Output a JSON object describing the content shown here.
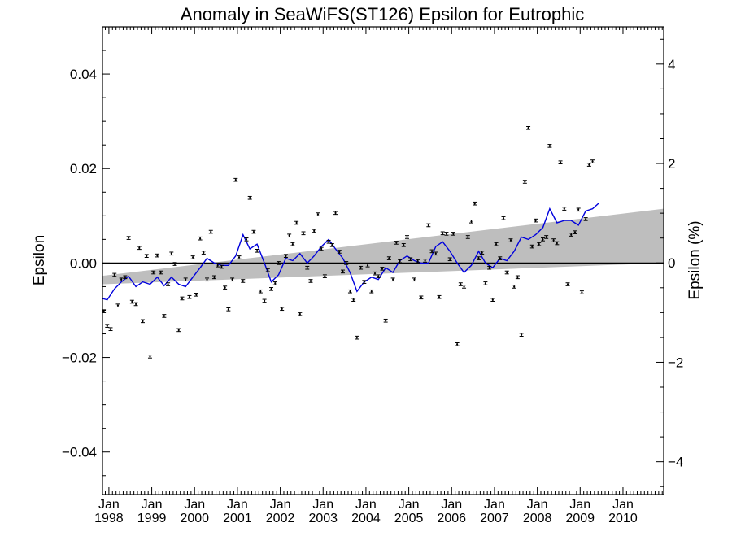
{
  "chart_data": {
    "type": "scatter",
    "title": "Anomaly in SeaWiFS(ST126) Epsilon for Eutrophic",
    "ylabel": "Epsilon",
    "y2label": "Epsilon (%)",
    "xlim": [
      1997.85,
      2010.95
    ],
    "ylim": [
      -0.049,
      0.05
    ],
    "y2lim": [
      -4.66,
      4.75
    ],
    "y_ticks": [
      {
        "value": 0.04,
        "label": "0.04"
      },
      {
        "value": 0.02,
        "label": "0.02"
      },
      {
        "value": 0.0,
        "label": "0.00"
      },
      {
        "value": -0.02,
        "label": "−0.02"
      },
      {
        "value": -0.04,
        "label": "−0.04"
      }
    ],
    "y2_ticks": [
      {
        "value": 4,
        "label": "4"
      },
      {
        "value": 2,
        "label": "2"
      },
      {
        "value": 0,
        "label": "0"
      },
      {
        "value": -2,
        "label": "−2"
      },
      {
        "value": -4,
        "label": "−4"
      }
    ],
    "x_ticks": [
      {
        "value": 1998.0,
        "month": "Jan",
        "year": "1998"
      },
      {
        "value": 1999.0,
        "month": "Jan",
        "year": "1999"
      },
      {
        "value": 2000.0,
        "month": "Jan",
        "year": "2000"
      },
      {
        "value": 2001.0,
        "month": "Jan",
        "year": "2001"
      },
      {
        "value": 2002.0,
        "month": "Jan",
        "year": "2002"
      },
      {
        "value": 2003.0,
        "month": "Jan",
        "year": "2003"
      },
      {
        "value": 2004.0,
        "month": "Jan",
        "year": "2004"
      },
      {
        "value": 2005.0,
        "month": "Jan",
        "year": "2005"
      },
      {
        "value": 2006.0,
        "month": "Jan",
        "year": "2006"
      },
      {
        "value": 2007.0,
        "month": "Jan",
        "year": "2007"
      },
      {
        "value": 2008.0,
        "month": "Jan",
        "year": "2008"
      },
      {
        "value": 2009.0,
        "month": "Jan",
        "year": "2009"
      },
      {
        "value": 2010.0,
        "month": "Jan",
        "year": "2010"
      }
    ],
    "trend_band": {
      "x": [
        1997.85,
        2010.95
      ],
      "upper": [
        -0.0027,
        0.0115
      ],
      "lower": [
        -0.0045,
        0.0
      ],
      "color": "#bebebe"
    },
    "zero_line": 0.0,
    "points": [
      [
        1997.88,
        -0.0102
      ],
      [
        1997.96,
        -0.0133
      ],
      [
        1998.04,
        -0.014
      ],
      [
        1998.13,
        -0.0025
      ],
      [
        1998.21,
        -0.009
      ],
      [
        1998.29,
        -0.0035
      ],
      [
        1998.38,
        -0.003
      ],
      [
        1998.46,
        0.0053
      ],
      [
        1998.54,
        -0.0082
      ],
      [
        1998.63,
        -0.0087
      ],
      [
        1998.71,
        0.0032
      ],
      [
        1998.79,
        -0.0123
      ],
      [
        1998.88,
        0.0015
      ],
      [
        1998.96,
        -0.0198
      ],
      [
        1999.04,
        -0.002
      ],
      [
        1999.13,
        0.0016
      ],
      [
        1999.21,
        -0.002
      ],
      [
        1999.29,
        -0.0112
      ],
      [
        1999.38,
        -0.0045
      ],
      [
        1999.46,
        0.002
      ],
      [
        1999.54,
        -0.0002
      ],
      [
        1999.63,
        -0.0142
      ],
      [
        1999.71,
        -0.0075
      ],
      [
        1999.79,
        -0.0035
      ],
      [
        1999.88,
        -0.0072
      ],
      [
        1999.96,
        0.0012
      ],
      [
        2000.04,
        -0.0067
      ],
      [
        2000.13,
        0.0052
      ],
      [
        2000.21,
        0.0022
      ],
      [
        2000.29,
        -0.0035
      ],
      [
        2000.38,
        0.0066
      ],
      [
        2000.46,
        -0.003
      ],
      [
        2000.54,
        -0.0005
      ],
      [
        2000.63,
        -0.0008
      ],
      [
        2000.71,
        -0.0052
      ],
      [
        2000.79,
        -0.0098
      ],
      [
        2000.88,
        -0.0035
      ],
      [
        2000.96,
        0.0176
      ],
      [
        2001.04,
        0.0012
      ],
      [
        2001.13,
        -0.0038
      ],
      [
        2001.21,
        0.005
      ],
      [
        2001.29,
        0.0138
      ],
      [
        2001.38,
        0.0066
      ],
      [
        2001.46,
        0.0026
      ],
      [
        2001.54,
        -0.006
      ],
      [
        2001.63,
        -0.008
      ],
      [
        2001.71,
        -0.0015
      ],
      [
        2001.79,
        -0.0055
      ],
      [
        2001.88,
        -0.0043
      ],
      [
        2001.96,
        0.0
      ],
      [
        2002.04,
        -0.0097
      ],
      [
        2002.13,
        0.0015
      ],
      [
        2002.21,
        0.0058
      ],
      [
        2002.29,
        0.004
      ],
      [
        2002.38,
        0.0085
      ],
      [
        2002.46,
        -0.0108
      ],
      [
        2002.54,
        0.0063
      ],
      [
        2002.63,
        -0.001
      ],
      [
        2002.71,
        -0.0038
      ],
      [
        2002.79,
        0.0068
      ],
      [
        2002.88,
        0.0103
      ],
      [
        2002.96,
        0.003
      ],
      [
        2003.04,
        -0.0028
      ],
      [
        2003.13,
        0.0045
      ],
      [
        2003.21,
        0.0038
      ],
      [
        2003.29,
        0.0106
      ],
      [
        2003.38,
        0.0024
      ],
      [
        2003.46,
        -0.0018
      ],
      [
        2003.54,
        0.0
      ],
      [
        2003.63,
        -0.006
      ],
      [
        2003.71,
        -0.0078
      ],
      [
        2003.79,
        -0.0158
      ],
      [
        2003.88,
        -0.001
      ],
      [
        2003.96,
        -0.004
      ],
      [
        2004.04,
        -0.0005
      ],
      [
        2004.13,
        -0.006
      ],
      [
        2004.21,
        -0.0022
      ],
      [
        2004.29,
        -0.0028
      ],
      [
        2004.38,
        -0.0012
      ],
      [
        2004.46,
        -0.0122
      ],
      [
        2004.54,
        0.001
      ],
      [
        2004.63,
        -0.0035
      ],
      [
        2004.71,
        0.0043
      ],
      [
        2004.79,
        0.0004
      ],
      [
        2004.88,
        0.0038
      ],
      [
        2004.96,
        0.0055
      ],
      [
        2005.04,
        0.0008
      ],
      [
        2005.13,
        -0.0035
      ],
      [
        2005.21,
        0.0004
      ],
      [
        2005.29,
        -0.0073
      ],
      [
        2005.38,
        0.0005
      ],
      [
        2005.46,
        0.008
      ],
      [
        2005.54,
        0.0025
      ],
      [
        2005.63,
        0.002
      ],
      [
        2005.71,
        -0.0072
      ],
      [
        2005.79,
        0.0063
      ],
      [
        2005.88,
        0.0062
      ],
      [
        2005.96,
        0.0008
      ],
      [
        2006.04,
        0.0062
      ],
      [
        2006.13,
        -0.0172
      ],
      [
        2006.21,
        -0.0045
      ],
      [
        2006.29,
        -0.005
      ],
      [
        2006.38,
        0.0055
      ],
      [
        2006.46,
        0.0088
      ],
      [
        2006.54,
        0.0126
      ],
      [
        2006.63,
        0.001
      ],
      [
        2006.71,
        0.0022
      ],
      [
        2006.79,
        -0.0043
      ],
      [
        2006.88,
        -0.001
      ],
      [
        2006.96,
        -0.0078
      ],
      [
        2007.04,
        0.004
      ],
      [
        2007.13,
        0.001
      ],
      [
        2007.21,
        0.0095
      ],
      [
        2007.29,
        -0.002
      ],
      [
        2007.38,
        0.0048
      ],
      [
        2007.46,
        -0.005
      ],
      [
        2007.54,
        -0.003
      ],
      [
        2007.63,
        -0.0152
      ],
      [
        2007.71,
        0.0172
      ],
      [
        2007.79,
        0.0286
      ],
      [
        2007.88,
        0.0035
      ],
      [
        2007.96,
        0.009
      ],
      [
        2008.04,
        0.004
      ],
      [
        2008.13,
        0.005
      ],
      [
        2008.21,
        0.0055
      ],
      [
        2008.29,
        0.0248
      ],
      [
        2008.38,
        0.0048
      ],
      [
        2008.46,
        0.0042
      ],
      [
        2008.54,
        0.0213
      ],
      [
        2008.63,
        0.0115
      ],
      [
        2008.71,
        -0.0045
      ],
      [
        2008.79,
        0.006
      ],
      [
        2008.88,
        0.0065
      ],
      [
        2008.96,
        0.0113
      ],
      [
        2009.04,
        -0.0062
      ],
      [
        2009.13,
        0.0093
      ],
      [
        2009.21,
        0.0208
      ],
      [
        2009.29,
        0.0215
      ]
    ],
    "running_mean": {
      "color": "#0000dd",
      "x": [
        1997.85,
        1997.96,
        1998.13,
        1998.29,
        1998.46,
        1998.63,
        1998.79,
        1998.96,
        1999.13,
        1999.29,
        1999.46,
        1999.63,
        1999.79,
        1999.96,
        2000.13,
        2000.29,
        2000.46,
        2000.63,
        2000.79,
        2000.96,
        2001.13,
        2001.29,
        2001.46,
        2001.63,
        2001.79,
        2001.96,
        2002.13,
        2002.29,
        2002.46,
        2002.63,
        2002.79,
        2002.96,
        2003.13,
        2003.29,
        2003.46,
        2003.63,
        2003.79,
        2003.96,
        2004.13,
        2004.29,
        2004.46,
        2004.63,
        2004.79,
        2004.96,
        2005.13,
        2005.29,
        2005.46,
        2005.63,
        2005.79,
        2005.96,
        2006.13,
        2006.29,
        2006.46,
        2006.63,
        2006.79,
        2006.96,
        2007.13,
        2007.29,
        2007.46,
        2007.63,
        2007.79,
        2007.96,
        2008.13,
        2008.29,
        2008.46,
        2008.63,
        2008.79,
        2008.96,
        2009.13,
        2009.29,
        2009.45
      ],
      "y": [
        -0.0075,
        -0.0078,
        -0.0055,
        -0.004,
        -0.0028,
        -0.005,
        -0.004,
        -0.0045,
        -0.003,
        -0.0048,
        -0.003,
        -0.0045,
        -0.005,
        -0.003,
        -0.001,
        0.001,
        0.0,
        -0.0005,
        -0.0005,
        0.0015,
        0.006,
        0.003,
        0.004,
        0.0,
        -0.004,
        -0.0025,
        0.001,
        0.0005,
        0.002,
        0.0,
        0.0015,
        0.0035,
        0.005,
        0.003,
        0.001,
        -0.002,
        -0.006,
        -0.004,
        -0.003,
        -0.0035,
        -0.001,
        -0.002,
        0.0005,
        0.0015,
        0.0005,
        0.0,
        0.0,
        0.0035,
        0.0045,
        0.0025,
        0.0,
        -0.002,
        -0.0005,
        0.0025,
        0.0,
        -0.001,
        0.001,
        0.0005,
        0.0025,
        0.0055,
        0.005,
        0.006,
        0.0075,
        0.0115,
        0.0085,
        0.009,
        0.009,
        0.008,
        0.011,
        0.0115,
        0.0128
      ]
    }
  }
}
